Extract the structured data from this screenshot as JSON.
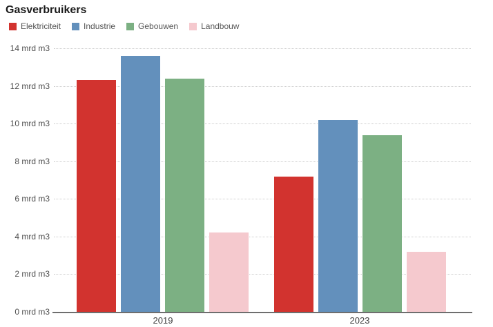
{
  "chart_data": {
    "type": "bar",
    "title": "Gasverbruikers",
    "categories": [
      "2019",
      "2023"
    ],
    "series": [
      {
        "name": "Elektriciteit",
        "color": "#d2332f",
        "values": [
          12.3,
          7.2
        ]
      },
      {
        "name": "Industrie",
        "color": "#6390bc",
        "values": [
          13.6,
          10.2
        ]
      },
      {
        "name": "Gebouwen",
        "color": "#7cb083",
        "values": [
          12.4,
          9.4
        ]
      },
      {
        "name": "Landbouw",
        "color": "#f5c9ce",
        "values": [
          4.2,
          3.2
        ]
      }
    ],
    "unit": "mrd m3",
    "y_ticks": [
      0,
      2,
      4,
      6,
      8,
      10,
      12,
      14
    ],
    "y_tick_labels": [
      "0 mrd m3",
      "2 mrd m3",
      "4 mrd m3",
      "6 mrd m3",
      "8 mrd m3",
      "10 mrd m3",
      "12 mrd m3",
      "14 mrd m3"
    ],
    "ylim": [
      0,
      14
    ],
    "xlabel": "",
    "ylabel": "",
    "grid": "horizontal-dotted",
    "legend_position": "top-left"
  },
  "colors": {
    "background": "#ffffff",
    "title_text": "#1a1a1a",
    "axis_text": "#4f4f4f",
    "gridline": "#cbcbcb",
    "axis_line": "#6e6e6e"
  }
}
